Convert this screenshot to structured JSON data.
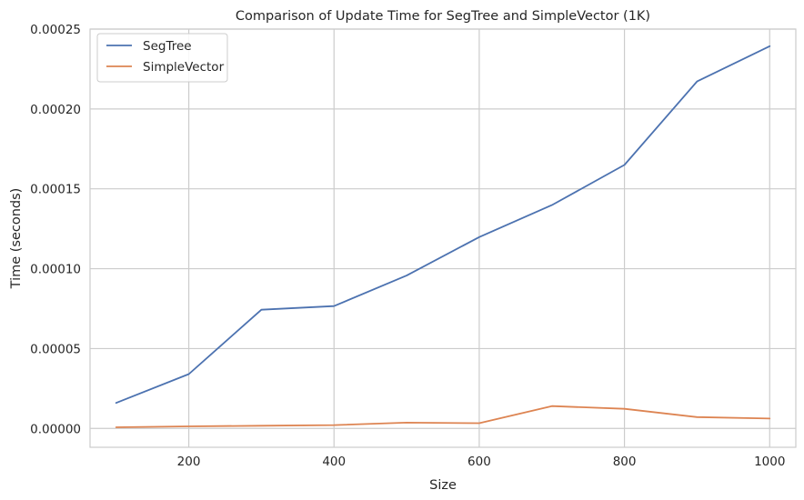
{
  "chart_data": {
    "type": "line",
    "title": "Comparison of Update Time for SegTree and SimpleVector (1K)",
    "xlabel": "Size",
    "ylabel": "Time (seconds)",
    "xlim": [
      64,
      1036
    ],
    "ylim": [
      -1.18e-05,
      0.00025
    ],
    "xticks": [
      200,
      400,
      600,
      800,
      1000
    ],
    "xtick_labels": [
      "200",
      "400",
      "600",
      "800",
      "1000"
    ],
    "yticks": [
      0,
      5e-05,
      0.0001,
      0.00015,
      0.0002,
      0.00025
    ],
    "ytick_labels": [
      "0.00000",
      "0.00005",
      "0.00010",
      "0.00015",
      "0.00020",
      "0.00025"
    ],
    "grid": true,
    "legend_position": "upper left",
    "x": [
      100,
      200,
      300,
      400,
      500,
      600,
      700,
      800,
      900,
      1000
    ],
    "series": [
      {
        "name": "SegTree",
        "color": "#4c72b0",
        "values": [
          1.6e-05,
          3.4e-05,
          7.43e-05,
          7.66e-05,
          9.57e-05,
          0.0001198,
          0.0001398,
          0.000165,
          0.0002172,
          0.0002393
        ]
      },
      {
        "name": "SimpleVector",
        "color": "#dd8452",
        "values": [
          7e-07,
          1.3e-06,
          1.7e-06,
          2.1e-06,
          3.6e-06,
          3.3e-06,
          1.4e-05,
          1.23e-05,
          7.1e-06,
          6.2e-06
        ]
      }
    ]
  }
}
